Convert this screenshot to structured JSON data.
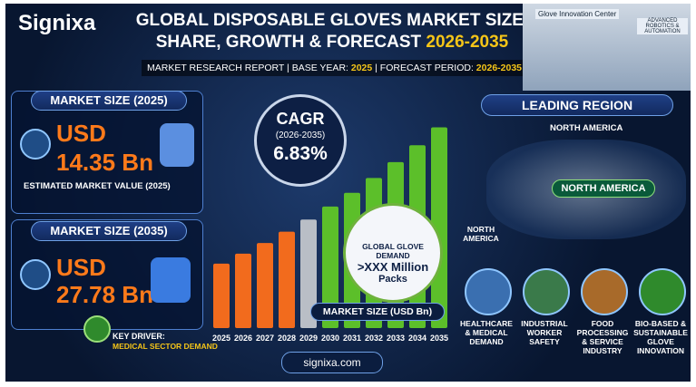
{
  "header": {
    "logo": "Signixa",
    "title_line1": "GLOBAL DISPOSABLE GLOVES MARKET SIZE,",
    "title_line2": "SHARE, GROWTH & FORECAST",
    "title_years": "2026-2035",
    "subtitle": [
      "MARKET RESEARCH REPORT",
      "BASE YEAR:",
      "2025",
      "FORECAST PERIOD:",
      "2026-2035"
    ],
    "image_labels": [
      "Glove Innovation Center",
      "ADVANCED ROBOTICS & AUTOMATION"
    ]
  },
  "panels": [
    {
      "heading": "MARKET SIZE (2025)",
      "currency": "USD",
      "value": "14.35 Bn",
      "note": "ESTIMATED MARKET VALUE (2025)"
    },
    {
      "heading": "MARKET SIZE (2035)",
      "currency": "USD",
      "value": "27.78 Bn"
    }
  ],
  "key_driver": {
    "label": "KEY DRIVER:",
    "text": "MEDICAL SECTOR DEMAND"
  },
  "cagr": {
    "label": "CAGR",
    "period": "(2026-2035)",
    "value": "6.83%"
  },
  "demand": {
    "title": "GLOBAL GLOVE DEMAND",
    "value": ">XXX Million",
    "unit": "Packs"
  },
  "chart": {
    "type": "bar",
    "title": "MARKET SIZE (USD Bn)",
    "categories": [
      "2025",
      "2026",
      "2027",
      "2028",
      "2029",
      "2030",
      "2031",
      "2032",
      "2033",
      "2034",
      "2035"
    ],
    "values": [
      14.35,
      15.33,
      16.38,
      17.5,
      18.69,
      19.97,
      21.33,
      22.79,
      24.35,
      26.01,
      27.78
    ],
    "colors": [
      "#f26b1d",
      "#f26b1d",
      "#f26b1d",
      "#f26b1d",
      "#b9bec6",
      "#5cbf2a",
      "#5cbf2a",
      "#5cbf2a",
      "#5cbf2a",
      "#5cbf2a",
      "#5cbf2a"
    ],
    "ylim": [
      8,
      28
    ]
  },
  "region": {
    "heading": "LEADING REGION",
    "pin_label": "NORTH AMERICA",
    "banner": "NORTH AMERICA",
    "map_label": "NORTH AMERICA"
  },
  "drivers": [
    "HEALTHCARE & MEDICAL DEMAND",
    "INDUSTRIAL WORKER SAFETY",
    "FOOD PROCESSING & SERVICE INDUSTRY",
    "BIO-BASED & SUSTAINABLE GLOVE INNOVATION"
  ],
  "footer": {
    "url": "signixa.com"
  }
}
